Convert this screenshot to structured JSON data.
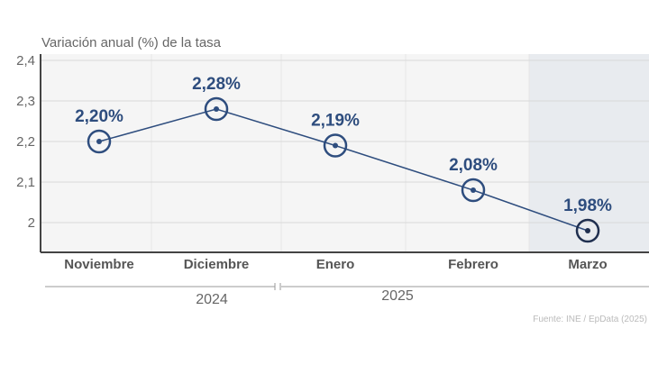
{
  "chart_data": {
    "type": "line",
    "ylabel": "Variación anual (%) de la tasa",
    "categories": [
      "Noviembre",
      "Diciembre",
      "Enero",
      "Febrero",
      "Marzo"
    ],
    "years": [
      {
        "label": "2024",
        "span": [
          "Noviembre",
          "Diciembre"
        ]
      },
      {
        "label": "2025",
        "span": [
          "Enero",
          "Marzo"
        ]
      }
    ],
    "values": [
      2.2,
      2.28,
      2.19,
      2.08,
      1.98
    ],
    "data_labels": [
      "2,20%",
      "2,28%",
      "2,19%",
      "2,08%",
      "1,98%"
    ],
    "yticks": [
      2,
      2.1,
      2.2,
      2.3,
      2.4
    ],
    "ytick_labels": [
      "2",
      "2,1",
      "2,2",
      "2,3",
      "2,4"
    ],
    "ylim": [
      1.93,
      2.4
    ],
    "grid": true,
    "highlighted_category": "Marzo",
    "source": "Fuente: INE / EpData (2025)",
    "colors": {
      "line": "#2e4d7e",
      "highlight_marker": "#1f2f4f",
      "plot_bg": "#f5f5f5",
      "highlight_bg": "#e8ebef",
      "grid": "#d9d9d9"
    }
  }
}
